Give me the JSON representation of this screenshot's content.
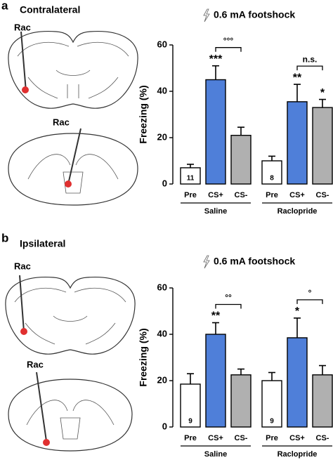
{
  "panels": [
    {
      "label": "a",
      "side": "Contralateral",
      "probe_labels": [
        "Rac",
        "Rac"
      ]
    },
    {
      "label": "b",
      "side": "Ipsilateral",
      "probe_labels": [
        "Rac",
        "Rac"
      ]
    }
  ],
  "chart_data": [
    {
      "type": "bar",
      "title": "0.6 mA footshock",
      "ylabel": "Freezing (%)",
      "categories": [
        "Pre",
        "CS+",
        "CS-"
      ],
      "colors": [
        "#ffffff",
        "#4f7fd9",
        "#b0b0b0"
      ],
      "ylim": [
        0,
        60
      ],
      "yticks": [
        0,
        20,
        40,
        60
      ],
      "series": [
        {
          "name": "Saline",
          "values": [
            7,
            45,
            21
          ],
          "errors": [
            1.5,
            6,
            3.5
          ],
          "n": 11,
          "stars": [
            null,
            "***",
            null
          ],
          "comparison": "°°°"
        },
        {
          "name": "Raclopride",
          "values": [
            10,
            35.5,
            33
          ],
          "errors": [
            2,
            7.5,
            3.5
          ],
          "n": 8,
          "stars": [
            null,
            "**",
            "*"
          ],
          "comparison": "n.s."
        }
      ]
    },
    {
      "type": "bar",
      "title": "0.6 mA footshock",
      "ylabel": "Freezing (%)",
      "categories": [
        "Pre",
        "CS+",
        "CS-"
      ],
      "colors": [
        "#ffffff",
        "#4f7fd9",
        "#b0b0b0"
      ],
      "ylim": [
        0,
        60
      ],
      "yticks": [
        0,
        20,
        40,
        60
      ],
      "series": [
        {
          "name": "Saline",
          "values": [
            18.5,
            40,
            22.5
          ],
          "errors": [
            4.5,
            5,
            2.5
          ],
          "n": 9,
          "stars": [
            null,
            "**",
            null
          ],
          "comparison": "°°"
        },
        {
          "name": "Raclopride",
          "values": [
            20,
            38.5,
            22.5
          ],
          "errors": [
            3.5,
            8.5,
            4
          ],
          "n": 9,
          "stars": [
            null,
            "*",
            null
          ],
          "comparison": "°"
        }
      ]
    }
  ]
}
